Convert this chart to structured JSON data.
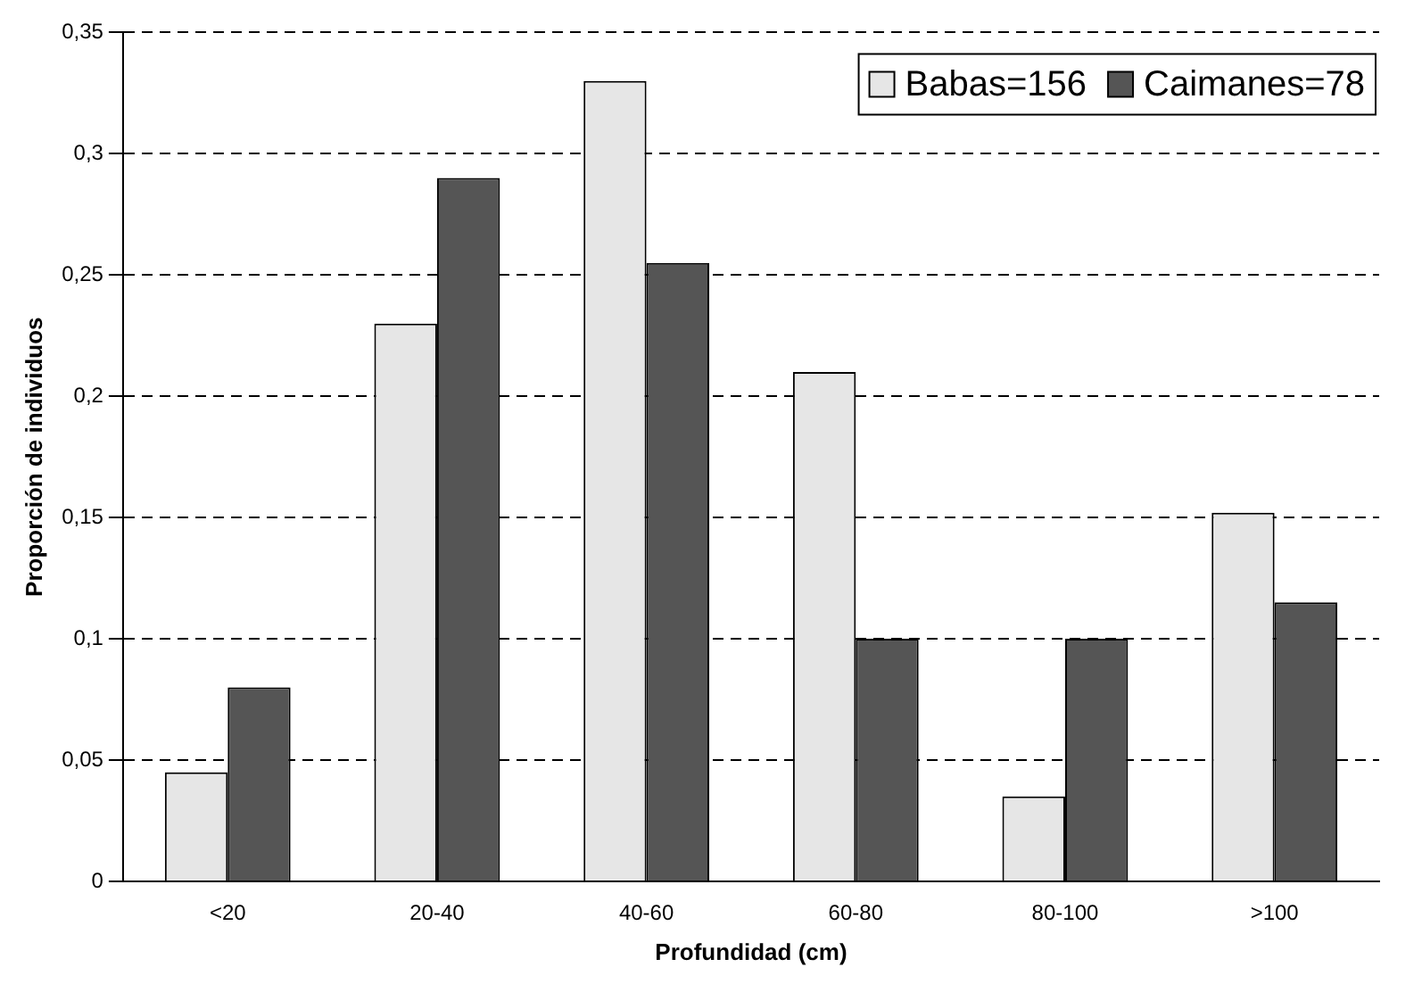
{
  "chart_data": {
    "type": "bar",
    "xlabel": "Profundidad (cm)",
    "ylabel": "Proporción de individuos",
    "categories": [
      "<20",
      "20-40",
      "40-60",
      "60-80",
      "80-100",
      ">100"
    ],
    "series": [
      {
        "name": "Babas=156",
        "color": "#e6e6e6",
        "values": [
          0.045,
          0.23,
          0.33,
          0.21,
          0.035,
          0.152
        ]
      },
      {
        "name": "Caimanes=78",
        "color": "#555555",
        "values": [
          0.08,
          0.29,
          0.255,
          0.1,
          0.1,
          0.115
        ]
      }
    ],
    "ylim": [
      0,
      0.35
    ],
    "yticks": [
      0,
      {
        "value": 0.05,
        "label": "0,05"
      },
      {
        "value": 0.1,
        "label": "0,1"
      },
      {
        "value": 0.15,
        "label": "0,15"
      },
      {
        "value": 0.2,
        "label": "0,2"
      },
      {
        "value": 0.25,
        "label": "0,25"
      },
      {
        "value": 0.3,
        "label": "0,3"
      },
      {
        "value": 0.35,
        "label": "0,35"
      }
    ],
    "grid": "y",
    "legend": "top right"
  }
}
